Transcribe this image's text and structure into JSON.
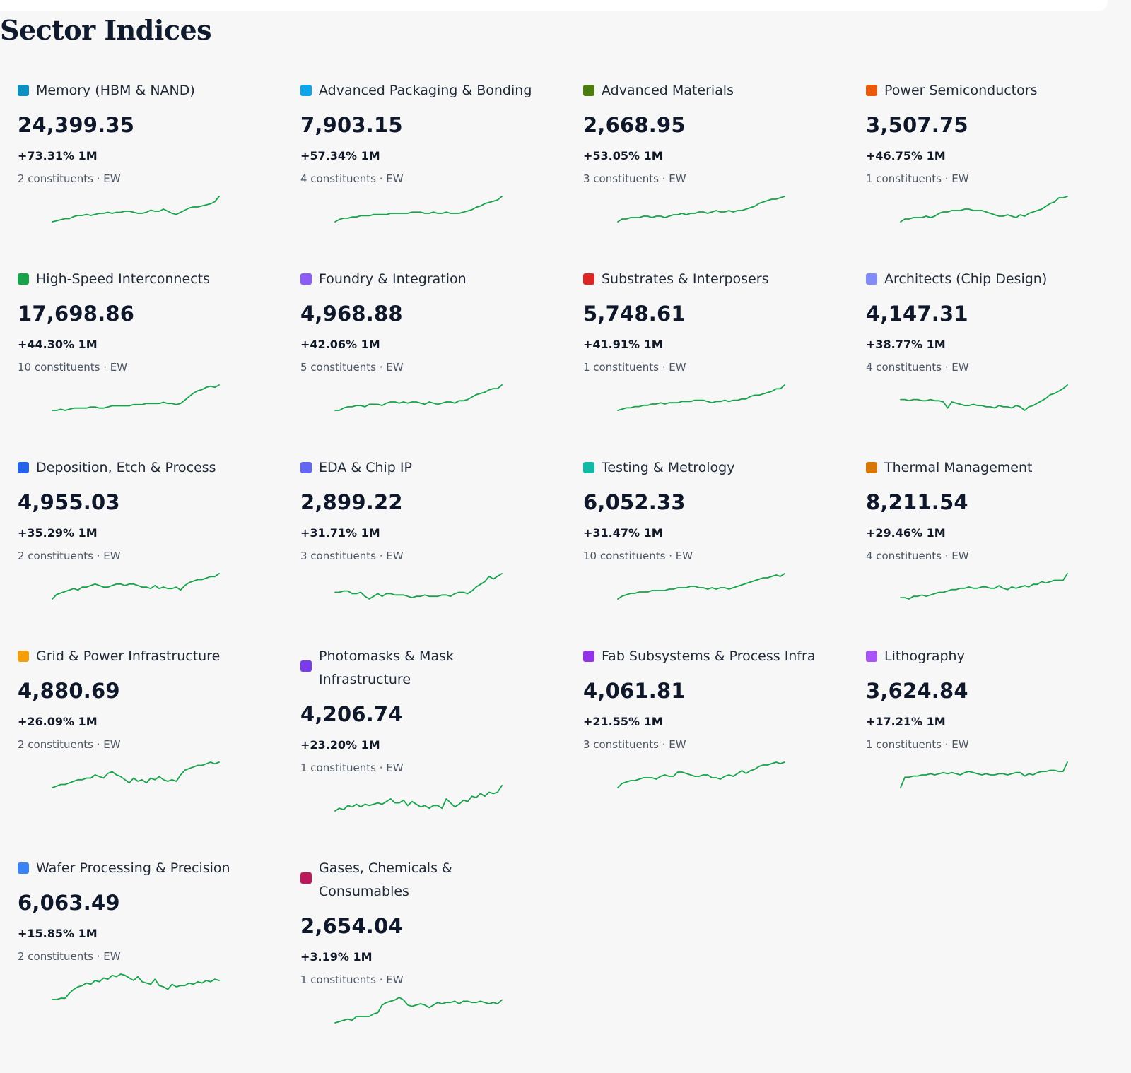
{
  "page": {
    "title": "Sector Indices"
  },
  "colors": {
    "sparkline": "#16a34a",
    "background": "#f7f7f7"
  },
  "sectors": [
    {
      "name": "Memory (HBM & NAND)",
      "color": "#0e8fc1",
      "value": "24,399.35",
      "change": "+73.31% 1M",
      "meta": "2 constituents · EW",
      "trend": [
        10,
        11,
        12,
        13,
        13,
        15,
        16,
        16,
        17,
        16,
        17,
        18,
        18,
        19,
        18,
        19,
        19,
        20,
        20,
        19,
        18,
        18,
        19,
        21,
        20,
        20,
        22,
        20,
        18,
        17,
        19,
        21,
        23,
        24,
        24,
        25,
        26,
        27,
        29,
        34
      ]
    },
    {
      "name": "Advanced Packaging & Bonding",
      "color": "#0ea5e9",
      "value": "7,903.15",
      "change": "+57.34% 1M",
      "meta": "4 constituents · EW",
      "trend": [
        10,
        12,
        13,
        13,
        14,
        14,
        15,
        15,
        15,
        16,
        16,
        16,
        16,
        17,
        17,
        17,
        17,
        17,
        18,
        18,
        18,
        17,
        17,
        18,
        17,
        17,
        18,
        17,
        17,
        17,
        18,
        19,
        20,
        22,
        23,
        25,
        26,
        27,
        28,
        31
      ]
    },
    {
      "name": "Advanced Materials",
      "color": "#4d7c0f",
      "value": "2,668.95",
      "change": "+53.05% 1M",
      "meta": "3 constituents · EW",
      "trend": [
        10,
        12,
        12,
        13,
        13,
        13,
        14,
        14,
        13,
        14,
        14,
        13,
        14,
        15,
        15,
        16,
        15,
        16,
        16,
        17,
        17,
        16,
        17,
        18,
        17,
        17,
        18,
        17,
        18,
        18,
        19,
        20,
        21,
        23,
        24,
        25,
        26,
        26,
        27,
        28
      ]
    },
    {
      "name": "Power Semiconductors",
      "color": "#ea580c",
      "value": "3,507.75",
      "change": "+46.75% 1M",
      "meta": "1 constituents · EW",
      "trend": [
        10,
        12,
        12,
        13,
        13,
        13,
        14,
        13,
        14,
        16,
        17,
        17,
        18,
        18,
        18,
        19,
        19,
        18,
        18,
        18,
        17,
        16,
        15,
        14,
        14,
        15,
        14,
        13,
        15,
        14,
        16,
        17,
        18,
        19,
        21,
        23,
        24,
        27,
        27,
        28
      ]
    },
    {
      "name": "High-Speed Interconnects",
      "color": "#16a34a",
      "value": "17,698.86",
      "change": "+44.30% 1M",
      "meta": "10 constituents · EW",
      "trend": [
        10,
        10,
        11,
        10,
        11,
        12,
        12,
        12,
        12,
        13,
        13,
        12,
        12,
        13,
        14,
        14,
        14,
        14,
        14,
        15,
        15,
        15,
        16,
        16,
        16,
        16,
        17,
        16,
        16,
        15,
        16,
        19,
        22,
        25,
        27,
        28,
        30,
        31,
        30,
        32
      ]
    },
    {
      "name": "Foundry & Integration",
      "color": "#8b5cf6",
      "value": "4,968.88",
      "change": "+42.06% 1M",
      "meta": "5 constituents · EW",
      "trend": [
        10,
        10,
        12,
        13,
        13,
        14,
        14,
        13,
        15,
        15,
        15,
        14,
        16,
        17,
        17,
        16,
        17,
        16,
        17,
        17,
        16,
        15,
        17,
        16,
        15,
        16,
        17,
        17,
        16,
        18,
        18,
        19,
        21,
        23,
        24,
        25,
        27,
        28,
        28,
        31
      ]
    },
    {
      "name": "Substrates & Interposers",
      "color": "#dc2626",
      "value": "5,748.61",
      "change": "+41.91% 1M",
      "meta": "1 constituents · EW",
      "trend": [
        10,
        11,
        12,
        12,
        13,
        13,
        14,
        14,
        15,
        15,
        16,
        15,
        16,
        16,
        16,
        17,
        17,
        17,
        18,
        18,
        18,
        17,
        16,
        17,
        17,
        18,
        17,
        18,
        18,
        19,
        19,
        21,
        22,
        22,
        23,
        24,
        25,
        27,
        27,
        30
      ]
    },
    {
      "name": "Architects (Chip Design)",
      "color": "#818cf8",
      "value": "4,147.31",
      "change": "+38.77% 1M",
      "meta": "4 constituents · EW",
      "trend": [
        21,
        21,
        20,
        21,
        21,
        20,
        20,
        21,
        20,
        20,
        19,
        14,
        19,
        18,
        17,
        16,
        16,
        17,
        16,
        16,
        15,
        15,
        14,
        16,
        15,
        15,
        14,
        16,
        15,
        12,
        15,
        16,
        18,
        20,
        22,
        25,
        26,
        28,
        30,
        33
      ]
    },
    {
      "name": "Deposition, Etch & Process",
      "color": "#2563eb",
      "value": "4,955.03",
      "change": "+35.29% 1M",
      "meta": "2 constituents · EW",
      "trend": [
        10,
        13,
        14,
        15,
        16,
        17,
        16,
        18,
        18,
        19,
        20,
        19,
        18,
        18,
        19,
        20,
        20,
        19,
        20,
        20,
        19,
        18,
        18,
        17,
        19,
        17,
        18,
        17,
        17,
        18,
        16,
        19,
        21,
        22,
        23,
        23,
        24,
        25,
        25,
        27
      ]
    },
    {
      "name": "EDA & Chip IP",
      "color": "#6366f1",
      "value": "2,899.22",
      "change": "+31.71% 1M",
      "meta": "3 constituents · EW",
      "trend": [
        18,
        18,
        19,
        19,
        17,
        17,
        18,
        15,
        13,
        15,
        17,
        15,
        17,
        17,
        16,
        16,
        16,
        15,
        14,
        15,
        15,
        16,
        15,
        15,
        15,
        16,
        16,
        15,
        17,
        18,
        18,
        17,
        19,
        22,
        24,
        26,
        30,
        28,
        30,
        32
      ]
    },
    {
      "name": "Testing & Metrology",
      "color": "#14b8a6",
      "value": "6,052.33",
      "change": "+31.47% 1M",
      "meta": "10 constituents · EW",
      "trend": [
        10,
        12,
        13,
        14,
        14,
        15,
        15,
        15,
        16,
        16,
        16,
        16,
        17,
        17,
        18,
        18,
        18,
        19,
        19,
        18,
        18,
        17,
        18,
        17,
        18,
        18,
        17,
        18,
        19,
        20,
        21,
        22,
        23,
        24,
        25,
        25,
        26,
        27,
        26,
        28
      ]
    },
    {
      "name": "Thermal Management",
      "color": "#d97706",
      "value": "8,211.54",
      "change": "+29.46% 1M",
      "meta": "4 constituents · EW",
      "trend": [
        10,
        10,
        9,
        11,
        11,
        12,
        11,
        12,
        13,
        14,
        14,
        15,
        16,
        16,
        17,
        17,
        18,
        17,
        17,
        18,
        18,
        17,
        17,
        19,
        17,
        16,
        18,
        17,
        18,
        19,
        18,
        20,
        20,
        22,
        21,
        22,
        23,
        23,
        23,
        28
      ]
    },
    {
      "name": "Grid & Power Infrastructure",
      "color": "#f59e0b",
      "value": "4,880.69",
      "change": "+26.09% 1M",
      "meta": "2 constituents · EW",
      "trend": [
        12,
        13,
        14,
        14,
        15,
        16,
        17,
        17,
        18,
        18,
        20,
        19,
        18,
        21,
        22,
        20,
        19,
        17,
        15,
        18,
        16,
        17,
        15,
        18,
        17,
        19,
        17,
        16,
        17,
        16,
        20,
        23,
        24,
        25,
        26,
        26,
        27,
        28,
        27,
        28
      ]
    },
    {
      "name": "Photomasks & Mask Infrastructure",
      "color": "#7c3aed",
      "value": "4,206.74",
      "change": "+23.20% 1M",
      "meta": "1 constituents · EW",
      "trend": [
        11,
        13,
        12,
        15,
        14,
        16,
        14,
        16,
        15,
        16,
        17,
        16,
        18,
        20,
        17,
        17,
        19,
        15,
        18,
        16,
        14,
        15,
        13,
        15,
        15,
        13,
        20,
        17,
        14,
        16,
        19,
        18,
        22,
        21,
        24,
        22,
        25,
        24,
        25,
        30
      ]
    },
    {
      "name": "Fab Subsystems & Process Infra",
      "color": "#9333ea",
      "value": "4,061.81",
      "change": "+21.55% 1M",
      "meta": "3 constituents · EW",
      "trend": [
        10,
        13,
        14,
        15,
        15,
        16,
        17,
        17,
        17,
        16,
        18,
        19,
        18,
        18,
        21,
        21,
        20,
        19,
        18,
        18,
        19,
        19,
        17,
        17,
        16,
        18,
        19,
        18,
        20,
        22,
        20,
        22,
        23,
        25,
        26,
        26,
        27,
        28,
        27,
        28
      ]
    },
    {
      "name": "Lithography",
      "color": "#a855f7",
      "value": "3,624.84",
      "change": "+17.21% 1M",
      "meta": "1 constituents · EW",
      "trend": [
        8,
        17,
        17,
        18,
        18,
        19,
        19,
        20,
        19,
        20,
        21,
        20,
        21,
        20,
        19,
        21,
        22,
        21,
        20,
        19,
        20,
        19,
        19,
        20,
        20,
        19,
        20,
        21,
        21,
        18,
        20,
        19,
        21,
        22,
        22,
        23,
        23,
        22,
        22,
        30
      ]
    },
    {
      "name": "Wafer Processing & Precision",
      "color": "#3b82f6",
      "value": "6,063.49",
      "change": "+15.85% 1M",
      "meta": "2 constituents · EW",
      "trend": [
        10,
        10,
        11,
        11,
        15,
        18,
        20,
        21,
        23,
        22,
        25,
        24,
        27,
        26,
        29,
        28,
        30,
        29,
        27,
        25,
        28,
        24,
        23,
        22,
        26,
        21,
        20,
        18,
        22,
        20,
        21,
        21,
        23,
        22,
        24,
        23,
        25,
        24,
        26,
        25
      ]
    },
    {
      "name": "Gases, Chemicals & Consumables",
      "color": "#be185d",
      "value": "2,654.04",
      "change": "+3.19% 1M",
      "meta": "1 constituents · EW",
      "trend": [
        10,
        11,
        12,
        13,
        12,
        15,
        15,
        15,
        15,
        17,
        18,
        24,
        26,
        27,
        28,
        30,
        28,
        24,
        23,
        24,
        25,
        24,
        22,
        24,
        26,
        25,
        26,
        26,
        27,
        25,
        27,
        27,
        26,
        26,
        27,
        26,
        25,
        26,
        25,
        28
      ]
    }
  ]
}
